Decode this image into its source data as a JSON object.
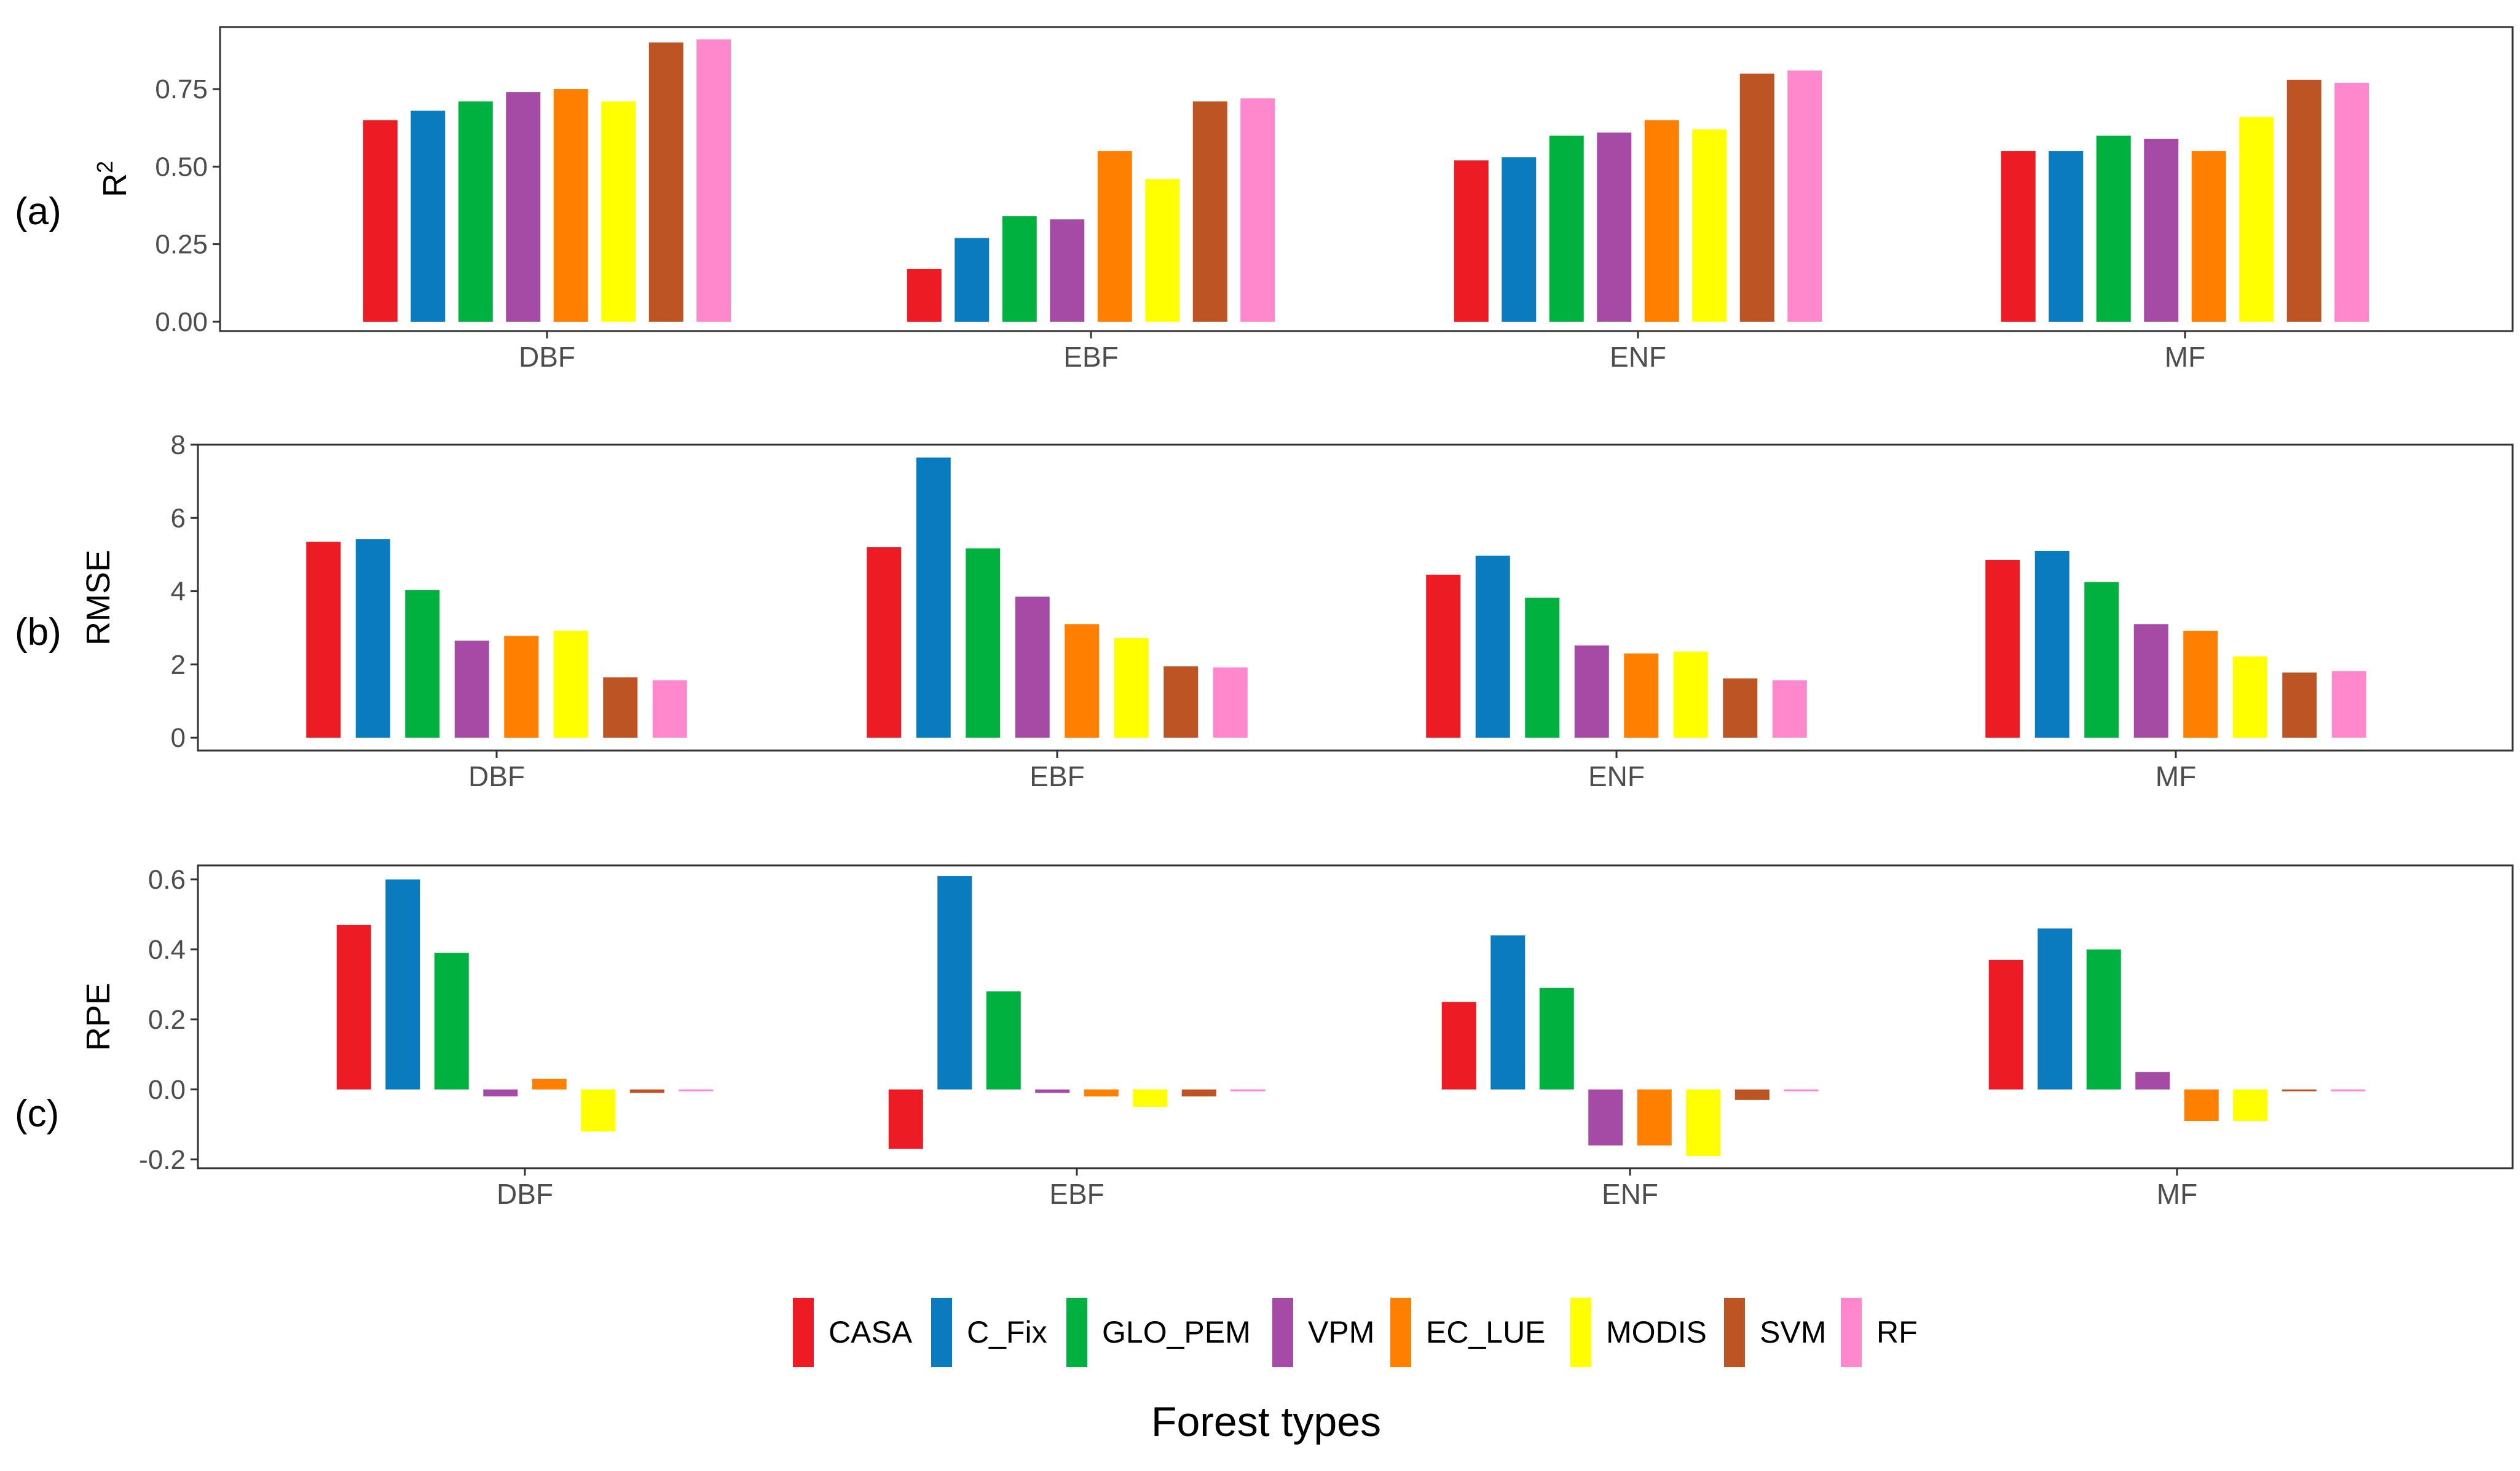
{
  "chart_data": [
    {
      "type": "bar",
      "panel_label": "(a)",
      "ylabel": "R",
      "ylabel_superscript": "2",
      "xlabel": "",
      "ylim": [
        -0.03,
        0.95
      ],
      "yticks": [
        0.0,
        0.25,
        0.5,
        0.75
      ],
      "ytick_labels": [
        "0.00",
        "0.25",
        "0.50",
        "0.75"
      ],
      "categories": [
        "DBF",
        "EBF",
        "ENF",
        "MF"
      ],
      "series": [
        {
          "name": "CASA",
          "values": [
            0.65,
            0.17,
            0.52,
            0.55
          ]
        },
        {
          "name": "C_Fix",
          "values": [
            0.68,
            0.27,
            0.53,
            0.55
          ]
        },
        {
          "name": "GLO_PEM",
          "values": [
            0.71,
            0.34,
            0.6,
            0.6
          ]
        },
        {
          "name": "VPM",
          "values": [
            0.74,
            0.33,
            0.61,
            0.59
          ]
        },
        {
          "name": "EC_LUE",
          "values": [
            0.75,
            0.55,
            0.65,
            0.55
          ]
        },
        {
          "name": "MODIS",
          "values": [
            0.71,
            0.46,
            0.62,
            0.66
          ]
        },
        {
          "name": "SVM",
          "values": [
            0.9,
            0.71,
            0.8,
            0.78
          ]
        },
        {
          "name": "RF",
          "values": [
            0.91,
            0.72,
            0.81,
            0.77
          ]
        }
      ],
      "grid": false,
      "legend": "bottom"
    },
    {
      "type": "bar",
      "panel_label": "(b)",
      "ylabel": "RMSE",
      "xlabel": "",
      "ylim": [
        -0.35,
        8.0
      ],
      "yticks": [
        0,
        2,
        4,
        6,
        8
      ],
      "ytick_labels": [
        "0",
        "2",
        "4",
        "6",
        "8"
      ],
      "categories": [
        "DBF",
        "EBF",
        "ENF",
        "MF"
      ],
      "series": [
        {
          "name": "CASA",
          "values": [
            5.35,
            5.2,
            4.45,
            4.85
          ]
        },
        {
          "name": "C_Fix",
          "values": [
            5.42,
            7.65,
            4.97,
            5.1
          ]
        },
        {
          "name": "GLO_PEM",
          "values": [
            4.03,
            5.17,
            3.82,
            4.25
          ]
        },
        {
          "name": "VPM",
          "values": [
            2.65,
            3.85,
            2.52,
            3.1
          ]
        },
        {
          "name": "EC_LUE",
          "values": [
            2.78,
            3.1,
            2.3,
            2.92
          ]
        },
        {
          "name": "MODIS",
          "values": [
            2.92,
            2.72,
            2.35,
            2.22
          ]
        },
        {
          "name": "SVM",
          "values": [
            1.65,
            1.95,
            1.62,
            1.78
          ]
        },
        {
          "name": "RF",
          "values": [
            1.57,
            1.92,
            1.57,
            1.82
          ]
        }
      ],
      "grid": false,
      "legend": "bottom"
    },
    {
      "type": "bar",
      "panel_label": "(c)",
      "ylabel": "RPE",
      "xlabel": "",
      "ylim": [
        -0.225,
        0.64
      ],
      "yticks": [
        -0.2,
        0.0,
        0.2,
        0.4,
        0.6
      ],
      "ytick_labels": [
        "-0.2",
        "0.0",
        "0.2",
        "0.4",
        "0.6"
      ],
      "categories": [
        "DBF",
        "EBF",
        "ENF",
        "MF"
      ],
      "series": [
        {
          "name": "CASA",
          "values": [
            0.47,
            -0.17,
            0.25,
            0.37
          ]
        },
        {
          "name": "C_Fix",
          "values": [
            0.6,
            0.61,
            0.44,
            0.46
          ]
        },
        {
          "name": "GLO_PEM",
          "values": [
            0.39,
            0.28,
            0.29,
            0.4
          ]
        },
        {
          "name": "VPM",
          "values": [
            -0.02,
            -0.01,
            -0.16,
            0.05
          ]
        },
        {
          "name": "EC_LUE",
          "values": [
            0.03,
            -0.02,
            -0.16,
            -0.09
          ]
        },
        {
          "name": "MODIS",
          "values": [
            -0.12,
            -0.05,
            -0.19,
            -0.09
          ]
        },
        {
          "name": "SVM",
          "values": [
            -0.01,
            -0.02,
            -0.03,
            0.0
          ]
        },
        {
          "name": "RF",
          "values": [
            0.0,
            0.0,
            0.0,
            0.0
          ]
        }
      ],
      "grid": false,
      "legend": "bottom"
    }
  ],
  "legend": {
    "items": [
      "CASA",
      "C_Fix",
      "GLO_PEM",
      "VPM",
      "EC_LUE",
      "MODIS",
      "SVM",
      "RF"
    ]
  },
  "colors": {
    "CASA": "#ED1C24",
    "C_Fix": "#0A7BBF",
    "GLO_PEM": "#00B140",
    "VPM": "#A54BA5",
    "EC_LUE": "#FF8000",
    "MODIS": "#FFFF00",
    "SVM": "#BC5424",
    "RF": "#FF88CC"
  },
  "shared_xlabel": "Forest types"
}
